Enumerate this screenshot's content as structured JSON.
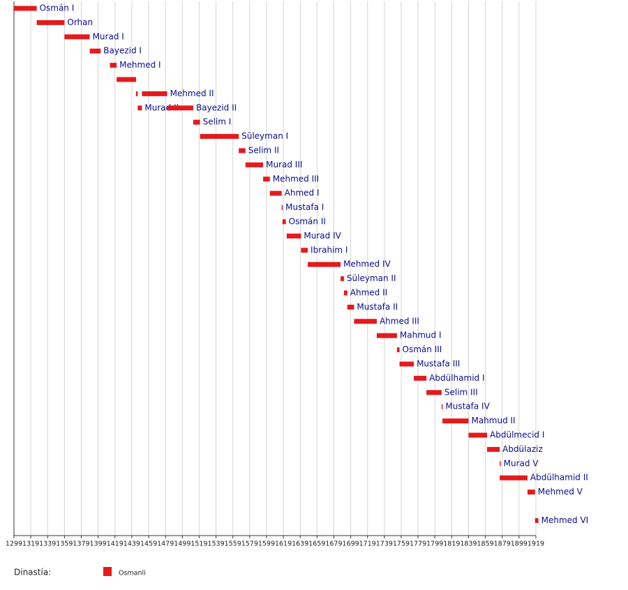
{
  "chart_data": {
    "type": "timeline",
    "xlim": [
      1299,
      1919
    ],
    "xticks": [
      1299,
      1319,
      1339,
      1359,
      1379,
      1399,
      1419,
      1439,
      1459,
      1479,
      1499,
      1519,
      1539,
      1559,
      1579,
      1599,
      1619,
      1639,
      1659,
      1679,
      1699,
      1719,
      1739,
      1759,
      1779,
      1799,
      1819,
      1839,
      1859,
      1879,
      1899,
      1919
    ],
    "grid": true,
    "legend_title": "Dinastía:",
    "series": [
      {
        "name": "Osmanli",
        "color": "#e41a1c"
      }
    ],
    "rows": [
      [
        {
          "start": 1299,
          "end": 1326,
          "label": "Osmán I"
        }
      ],
      [
        {
          "start": 1326,
          "end": 1359,
          "label": "Orhan"
        }
      ],
      [
        {
          "start": 1359,
          "end": 1389,
          "label": "Murad I"
        }
      ],
      [
        {
          "start": 1389,
          "end": 1402,
          "label": "Bayezid I"
        }
      ],
      [
        {
          "start": 1413,
          "end": 1421,
          "label": "Mehmed I"
        }
      ],
      [
        {
          "start": 1421,
          "end": 1444
        }
      ],
      [
        {
          "start": 1444,
          "end": 1446
        },
        {
          "start": 1451,
          "end": 1481,
          "label": "Mehmed II"
        }
      ],
      [
        {
          "start": 1446,
          "end": 1451,
          "label": "Murad II"
        },
        {
          "start": 1481,
          "end": 1512,
          "label": "Bayezid II"
        }
      ],
      [
        {
          "start": 1512,
          "end": 1520,
          "label": "Selim I"
        }
      ],
      [
        {
          "start": 1520,
          "end": 1566,
          "label": "Süleyman I"
        }
      ],
      [
        {
          "start": 1566,
          "end": 1574,
          "label": "Selim II"
        }
      ],
      [
        {
          "start": 1574,
          "end": 1595,
          "label": "Murad III"
        }
      ],
      [
        {
          "start": 1595,
          "end": 1603,
          "label": "Mehmed III"
        }
      ],
      [
        {
          "start": 1603,
          "end": 1617,
          "label": "Ahmed I"
        }
      ],
      [
        {
          "start": 1617,
          "end": 1618,
          "label": "Mustafa I"
        }
      ],
      [
        {
          "start": 1618,
          "end": 1622,
          "label": "Osmán II"
        }
      ],
      [
        {
          "start": 1623,
          "end": 1640,
          "label": "Murad IV"
        }
      ],
      [
        {
          "start": 1640,
          "end": 1648,
          "label": "Ibrahim I"
        }
      ],
      [
        {
          "start": 1648,
          "end": 1687,
          "label": "Mehmed IV"
        }
      ],
      [
        {
          "start": 1687,
          "end": 1691,
          "label": "Süleyman II"
        }
      ],
      [
        {
          "start": 1691,
          "end": 1695,
          "label": "Ahmed II"
        }
      ],
      [
        {
          "start": 1695,
          "end": 1703,
          "label": "Mustafa II"
        }
      ],
      [
        {
          "start": 1703,
          "end": 1730,
          "label": "Ahmed III"
        }
      ],
      [
        {
          "start": 1730,
          "end": 1754,
          "label": "Mahmud I"
        }
      ],
      [
        {
          "start": 1754,
          "end": 1757,
          "label": "Osmán III"
        }
      ],
      [
        {
          "start": 1757,
          "end": 1774,
          "label": "Mustafa III"
        }
      ],
      [
        {
          "start": 1774,
          "end": 1789,
          "label": "Abdülhamid I"
        }
      ],
      [
        {
          "start": 1789,
          "end": 1807,
          "label": "Selim III"
        }
      ],
      [
        {
          "start": 1807,
          "end": 1808,
          "label": "Mustafa IV"
        }
      ],
      [
        {
          "start": 1808,
          "end": 1839,
          "label": "Mahmud II"
        }
      ],
      [
        {
          "start": 1839,
          "end": 1861,
          "label": "Abdülmecid I"
        }
      ],
      [
        {
          "start": 1861,
          "end": 1876,
          "label": "Abdülaziz"
        }
      ],
      [
        {
          "start": 1876,
          "end": 1876,
          "label": "Murad V"
        }
      ],
      [
        {
          "start": 1876,
          "end": 1909,
          "label": "Abdülhamid II"
        }
      ],
      [
        {
          "start": 1909,
          "end": 1918,
          "label": "Mehmed V"
        }
      ],
      [],
      [
        {
          "start": 1918,
          "end": 1922,
          "label": "Mehmed VI"
        }
      ]
    ]
  }
}
